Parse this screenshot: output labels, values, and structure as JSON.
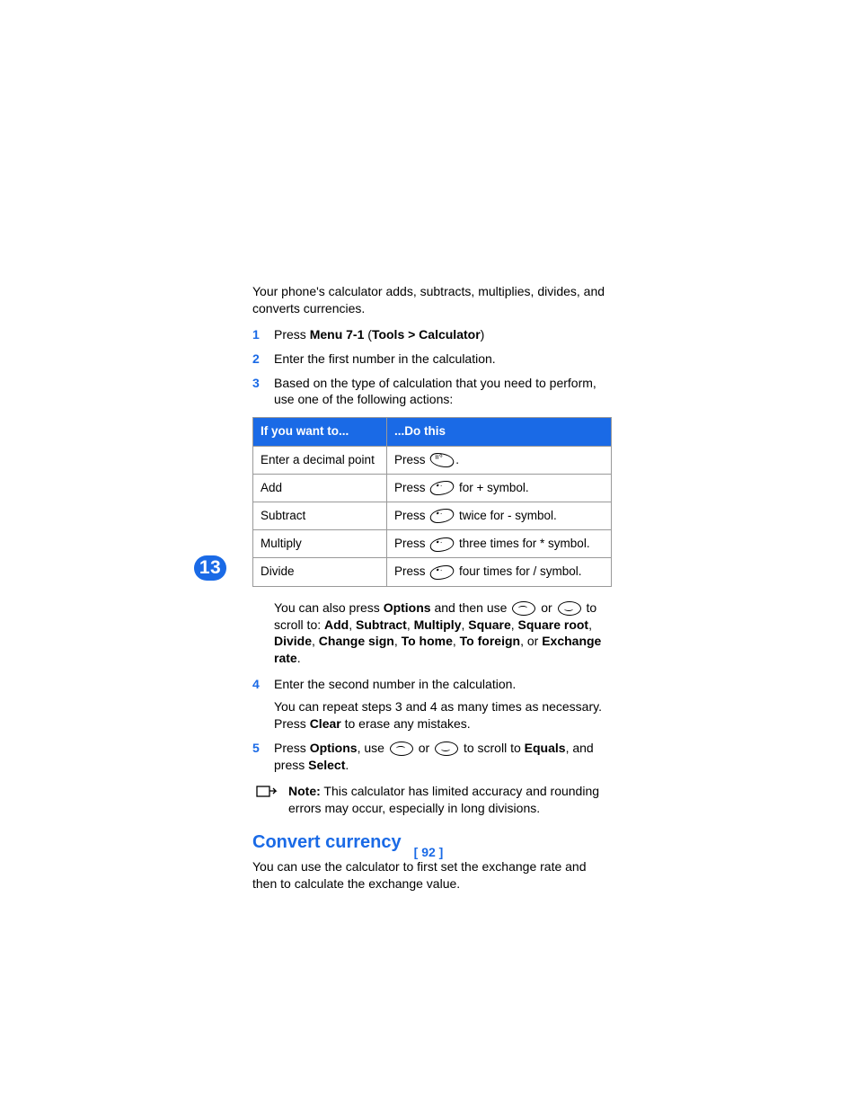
{
  "chapter_number": "13",
  "accent_color": "#1a6ae6",
  "intro_paragraph": "Your phone's calculator adds, subtracts, multiplies, divides, and converts currencies.",
  "steps_upper": [
    {
      "num": "1",
      "runs": [
        {
          "t": "Press ",
          "b": false
        },
        {
          "t": "Menu 7-1 ",
          "b": true
        },
        {
          "t": "(",
          "b": false
        },
        {
          "t": "Tools > Calculator",
          "b": true
        },
        {
          "t": ")",
          "b": false
        }
      ]
    },
    {
      "num": "2",
      "runs": [
        {
          "t": "Enter the first number in the calculation.",
          "b": false
        }
      ]
    },
    {
      "num": "3",
      "runs": [
        {
          "t": "Based on the type of calculation that you need to perform, use one of the following actions:",
          "b": false
        }
      ]
    }
  ],
  "table": {
    "col1_header": "If you want to...",
    "col2_header": "...Do this",
    "rows": [
      {
        "want": "Enter a decimal point",
        "prefix": "Press ",
        "key": "hash",
        "suffix": "."
      },
      {
        "want": "Add",
        "prefix": "Press ",
        "key": "star",
        "suffix": " for + symbol."
      },
      {
        "want": "Subtract",
        "prefix": "Press ",
        "key": "star",
        "suffix": " twice for - symbol."
      },
      {
        "want": "Multiply",
        "prefix": "Press ",
        "key": "star",
        "suffix": " three times for * symbol."
      },
      {
        "want": "Divide",
        "prefix": "Press ",
        "key": "star",
        "suffix": " four times for / symbol."
      }
    ]
  },
  "options_block": {
    "runs1": [
      {
        "t": "You can also press ",
        "b": false
      },
      {
        "t": "Options",
        "b": true
      },
      {
        "t": " and then use ",
        "b": false
      },
      {
        "icon": "up"
      },
      {
        "t": " or ",
        "b": false
      },
      {
        "icon": "down"
      },
      {
        "t": " to scroll to: ",
        "b": false
      }
    ],
    "runs2": [
      {
        "t": "Add",
        "b": true
      },
      {
        "t": ", ",
        "b": false
      },
      {
        "t": "Subtract",
        "b": true
      },
      {
        "t": ", ",
        "b": false
      },
      {
        "t": "Multiply",
        "b": true
      },
      {
        "t": ", ",
        "b": false
      },
      {
        "t": "Square",
        "b": true
      },
      {
        "t": ", ",
        "b": false
      },
      {
        "t": "Square root",
        "b": true
      },
      {
        "t": ", ",
        "b": false
      },
      {
        "t": "Divide",
        "b": true
      },
      {
        "t": ", ",
        "b": false
      },
      {
        "t": "Change sign",
        "b": true
      },
      {
        "t": ", ",
        "b": false
      },
      {
        "t": "To home",
        "b": true
      },
      {
        "t": ", ",
        "b": false
      },
      {
        "t": "To foreign",
        "b": true
      },
      {
        "t": ", or ",
        "b": false
      },
      {
        "t": "Exchange rate",
        "b": true
      },
      {
        "t": ".",
        "b": false
      }
    ]
  },
  "step4": {
    "num": "4",
    "runs": [
      {
        "t": "Enter the second number in the calculation.",
        "b": false
      }
    ],
    "sub_runs": [
      {
        "t": "You can repeat steps 3 and 4 as many times as necessary. Press ",
        "b": false
      },
      {
        "t": "Clear",
        "b": true
      },
      {
        "t": " to erase any mistakes.",
        "b": false
      }
    ]
  },
  "step5": {
    "num": "5",
    "runs": [
      {
        "t": "Press ",
        "b": false
      },
      {
        "t": "Options",
        "b": true
      },
      {
        "t": ", use ",
        "b": false
      },
      {
        "icon": "up"
      },
      {
        "t": " or ",
        "b": false
      },
      {
        "icon": "down"
      },
      {
        "t": " to scroll to ",
        "b": false
      },
      {
        "t": "Equals",
        "b": true
      },
      {
        "t": ", and press ",
        "b": false
      },
      {
        "t": "Select",
        "b": true
      },
      {
        "t": ".",
        "b": false
      }
    ]
  },
  "note": {
    "label": "Note:",
    "text": " This calculator has limited accuracy and rounding errors may occur, especially in long divisions."
  },
  "section_heading": "Convert currency",
  "section_paragraph": "You can use the calculator to first set the exchange rate and then to calculate the exchange value.",
  "page_number": "[ 92 ]"
}
